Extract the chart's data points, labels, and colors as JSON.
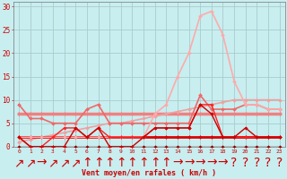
{
  "x": [
    0,
    1,
    2,
    3,
    4,
    5,
    6,
    7,
    8,
    9,
    10,
    11,
    12,
    13,
    14,
    15,
    16,
    17,
    18,
    19,
    20,
    21,
    22,
    23
  ],
  "series": [
    {
      "name": "rafales_light_pink_peak",
      "y": [
        2,
        2,
        2,
        2,
        2,
        2,
        2,
        2,
        2,
        2,
        2,
        2,
        7,
        9,
        15,
        20,
        28,
        29,
        24,
        14,
        9,
        9,
        8,
        8
      ],
      "color": "#ffaaaa",
      "lw": 1.2,
      "marker": "D",
      "ms": 2.0,
      "zorder": 5
    },
    {
      "name": "linear_light_pink",
      "y": [
        1,
        1.5,
        2,
        2.5,
        3,
        3.5,
        4,
        4.5,
        5,
        5,
        5.5,
        6,
        6.5,
        7,
        7.5,
        8,
        8.5,
        9,
        9.5,
        10,
        10,
        10,
        10,
        10
      ],
      "color": "#f0a0a0",
      "lw": 1.2,
      "marker": "D",
      "ms": 2.0,
      "zorder": 4
    },
    {
      "name": "flat_medium_pink",
      "y": [
        7,
        7,
        7,
        7,
        7,
        7,
        7,
        7,
        7,
        7,
        7,
        7,
        7,
        7,
        7,
        7,
        7,
        7,
        7,
        7,
        7,
        7,
        7,
        7
      ],
      "color": "#f08080",
      "lw": 2.5,
      "marker": "D",
      "ms": 2.0,
      "zorder": 3
    },
    {
      "name": "medium_pink_varying",
      "y": [
        9,
        6,
        6,
        5,
        5,
        5,
        8,
        9,
        5,
        5,
        5,
        5,
        5,
        5,
        5,
        5,
        11,
        8,
        8,
        8,
        9,
        9,
        8,
        8
      ],
      "color": "#f06868",
      "lw": 1.2,
      "marker": "D",
      "ms": 2.0,
      "zorder": 4
    },
    {
      "name": "red_flat",
      "y": [
        2,
        2,
        2,
        2,
        2,
        2,
        2,
        2,
        2,
        2,
        2,
        2,
        2,
        2,
        2,
        2,
        2,
        2,
        2,
        2,
        2,
        2,
        2,
        2
      ],
      "color": "#dd0000",
      "lw": 2.0,
      "marker": "D",
      "ms": 2.0,
      "zorder": 4
    },
    {
      "name": "red_zigzag1",
      "y": [
        2,
        0,
        0,
        2,
        4,
        4,
        2,
        4,
        2,
        2,
        2,
        2,
        4,
        4,
        4,
        4,
        9,
        9,
        2,
        2,
        2,
        2,
        2,
        2
      ],
      "color": "#ff2020",
      "lw": 1.0,
      "marker": "D",
      "ms": 1.8,
      "zorder": 5
    },
    {
      "name": "red_zigzag2",
      "y": [
        2,
        0,
        0,
        0,
        0,
        4,
        2,
        4,
        0,
        0,
        0,
        2,
        4,
        4,
        4,
        4,
        9,
        7,
        2,
        2,
        4,
        2,
        2,
        2
      ],
      "color": "#cc0000",
      "lw": 1.0,
      "marker": "D",
      "ms": 1.8,
      "zorder": 5
    },
    {
      "name": "dark_red_low",
      "y": [
        0,
        0,
        0,
        0,
        0,
        0,
        0,
        0,
        0,
        0,
        0,
        0,
        0,
        0,
        0,
        0,
        0,
        0,
        0,
        0,
        0,
        0,
        0,
        0
      ],
      "color": "#880000",
      "lw": 1.0,
      "marker": "D",
      "ms": 1.8,
      "zorder": 3
    }
  ],
  "arrows": [
    "↗",
    "↗",
    "→",
    "↗",
    "↗",
    "↗",
    "↑",
    "↑",
    "↑",
    "↑",
    "↑",
    "↑",
    "↑",
    "↑",
    "→",
    "→",
    "→",
    "→",
    "→",
    "?",
    "?",
    "?",
    "?",
    "?"
  ],
  "bg_color": "#c8eef0",
  "grid_color": "#aacccc",
  "tick_color": "#cc0000",
  "label_color": "#cc0000",
  "xlabel": "Vent moyen/en rafales ( km/h )",
  "ylim": [
    0,
    31
  ],
  "xlim": [
    -0.5,
    23.5
  ],
  "yticks": [
    0,
    5,
    10,
    15,
    20,
    25,
    30
  ],
  "xticks": [
    0,
    1,
    2,
    3,
    4,
    5,
    6,
    7,
    8,
    9,
    10,
    11,
    12,
    13,
    14,
    15,
    16,
    17,
    18,
    19,
    20,
    21,
    22,
    23
  ]
}
